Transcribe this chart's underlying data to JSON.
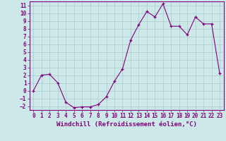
{
  "x": [
    0,
    1,
    2,
    3,
    4,
    5,
    6,
    7,
    8,
    9,
    10,
    11,
    12,
    13,
    14,
    15,
    16,
    17,
    18,
    19,
    20,
    21,
    22,
    23
  ],
  "y": [
    0.0,
    2.0,
    2.1,
    1.0,
    -1.5,
    -2.2,
    -2.1,
    -2.1,
    -1.8,
    -0.8,
    1.2,
    2.8,
    6.5,
    8.5,
    10.2,
    9.5,
    11.2,
    8.3,
    8.3,
    7.2,
    9.5,
    8.6,
    8.6,
    2.2
  ],
  "xlabel": "Windchill (Refroidissement éolien,°C)",
  "line_color": "#800080",
  "marker": "+",
  "background_color": "#cce8e8",
  "grid_color": "#aacccc",
  "xlim": [
    -0.5,
    23.5
  ],
  "ylim": [
    -2.5,
    11.5
  ],
  "yticks": [
    -2,
    -1,
    0,
    1,
    2,
    3,
    4,
    5,
    6,
    7,
    8,
    9,
    10,
    11
  ],
  "xticks": [
    0,
    1,
    2,
    3,
    4,
    5,
    6,
    7,
    8,
    9,
    10,
    11,
    12,
    13,
    14,
    15,
    16,
    17,
    18,
    19,
    20,
    21,
    22,
    23
  ],
  "tick_fontsize": 5.5,
  "xlabel_fontsize": 6.5,
  "text_color": "#800080"
}
